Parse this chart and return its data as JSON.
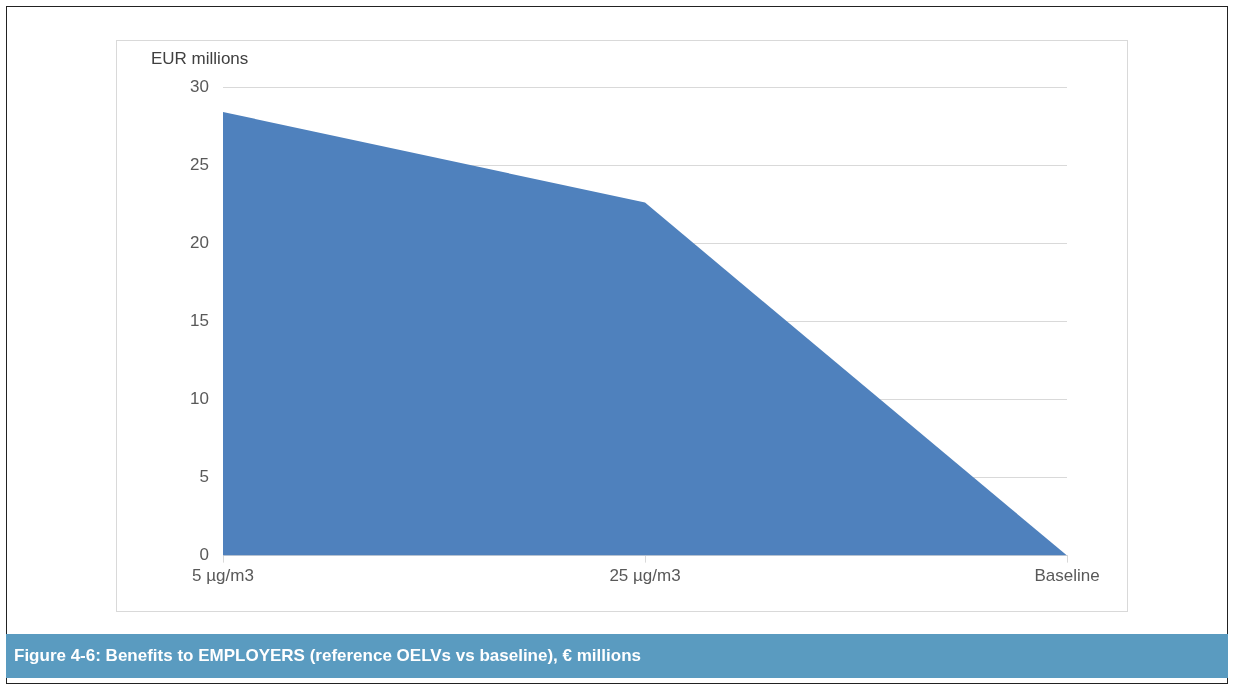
{
  "chart_data": {
    "type": "area",
    "title": "Figure 4-6:  Benefits to EMPLOYERS (reference OELVs vs baseline), € millions",
    "ylabel": "EUR millions",
    "categories": [
      "5 µg/m3",
      "25 µg/m3",
      "Baseline"
    ],
    "series": [
      {
        "color": "#4f81bd",
        "values": [
          28.4,
          22.6,
          0
        ]
      }
    ],
    "ylim": [
      0,
      30
    ],
    "yticks": [
      0,
      5,
      10,
      15,
      20,
      25,
      30
    ],
    "grid": "y"
  }
}
